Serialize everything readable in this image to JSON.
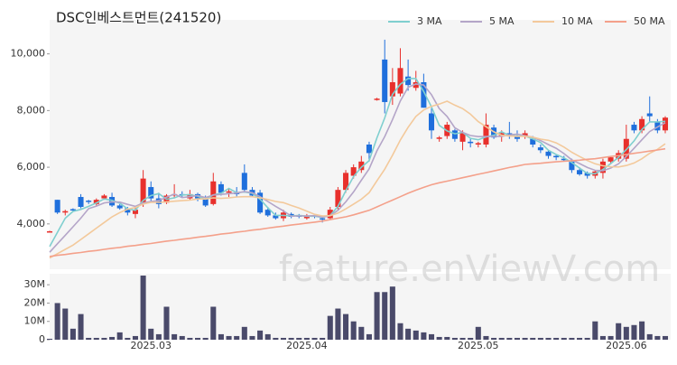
{
  "chart_data": {
    "type": "candlestick",
    "title": "DSC인베스트먼트(241520)",
    "watermark": "feature.enViewV.com",
    "categories": [
      null,
      null,
      null,
      null,
      null,
      null,
      null,
      null,
      null,
      null,
      null,
      null,
      null,
      "2025.03",
      null,
      null,
      null,
      null,
      null,
      null,
      null,
      null,
      null,
      null,
      null,
      null,
      null,
      null,
      null,
      null,
      null,
      null,
      null,
      "2025.04",
      null,
      null,
      null,
      null,
      null,
      null,
      null,
      null,
      null,
      null,
      null,
      null,
      null,
      null,
      null,
      null,
      null,
      null,
      null,
      null,
      null,
      "2025.05",
      null,
      null,
      null,
      null,
      null,
      null,
      null,
      null,
      null,
      null,
      null,
      null,
      null,
      null,
      null,
      null,
      null,
      null,
      "2025.06",
      null,
      null,
      null,
      null,
      null
    ],
    "open": [
      3720,
      4850,
      4400,
      4520,
      4950,
      4820,
      4700,
      4900,
      4950,
      4650,
      4550,
      4350,
      4700,
      5300,
      4900,
      4750,
      5000,
      5050,
      4900,
      5050,
      4900,
      4700,
      5400,
      5100,
      5100,
      5800,
      5200,
      5100,
      4500,
      4300,
      4200,
      4350,
      4300,
      4200,
      4300,
      4200,
      4200,
      4600,
      5200,
      5700,
      5900,
      6800,
      8400,
      9800,
      8500,
      8600,
      9200,
      8800,
      9000,
      7900,
      7000,
      7100,
      7300,
      6900,
      6900,
      6800,
      6800,
      7400,
      7100,
      7200,
      7100,
      7100,
      7000,
      6700,
      6550,
      6400,
      6300,
      6200,
      5900,
      5800,
      5700,
      5800,
      6200,
      6300,
      6300,
      7500,
      7300,
      7900,
      7600,
      7300
    ],
    "high": [
      3760,
      4850,
      4500,
      4550,
      5050,
      4850,
      4900,
      5050,
      5100,
      4700,
      4600,
      4600,
      5900,
      5500,
      5100,
      5050,
      5400,
      5150,
      5200,
      5100,
      5000,
      5800,
      5500,
      5250,
      5300,
      6100,
      5300,
      5200,
      4600,
      4400,
      4500,
      4400,
      4350,
      4350,
      4350,
      4300,
      4600,
      5300,
      5900,
      6100,
      6400,
      6900,
      8450,
      10500,
      9500,
      10200,
      9800,
      9400,
      9300,
      8100,
      7100,
      7600,
      7350,
      7300,
      7000,
      6900,
      7900,
      7500,
      7300,
      7600,
      7300,
      7300,
      7100,
      6800,
      6600,
      6450,
      6400,
      6300,
      6000,
      5850,
      5900,
      6300,
      6400,
      6600,
      7500,
      7600,
      7800,
      8500,
      7700,
      7800
    ],
    "low": [
      3700,
      4350,
      4300,
      4450,
      4550,
      4700,
      4650,
      4850,
      4600,
      4500,
      4300,
      4200,
      4600,
      4800,
      4550,
      4700,
      4900,
      4950,
      4850,
      4800,
      4600,
      4650,
      5000,
      4950,
      4950,
      5100,
      4950,
      4350,
      4250,
      4150,
      4100,
      4200,
      4200,
      4150,
      4200,
      4050,
      4150,
      4500,
      5100,
      5600,
      5800,
      6200,
      8350,
      7900,
      8200,
      8500,
      8700,
      8700,
      8100,
      7000,
      6900,
      7000,
      6900,
      6600,
      6700,
      6700,
      6700,
      7000,
      6900,
      7000,
      6900,
      7000,
      6700,
      6500,
      6300,
      6250,
      6200,
      5800,
      5700,
      5600,
      5600,
      5600,
      6100,
      6200,
      6200,
      7200,
      7200,
      7600,
      7200,
      7200
    ],
    "close": [
      3740,
      4400,
      4450,
      4480,
      4600,
      4780,
      4850,
      5000,
      4650,
      4550,
      4400,
      4500,
      5600,
      4900,
      4700,
      5000,
      5050,
      5000,
      5050,
      4900,
      4650,
      5500,
      5100,
      5150,
      5050,
      5200,
      5000,
      4400,
      4300,
      4200,
      4400,
      4250,
      4250,
      4300,
      4250,
      4150,
      4500,
      5200,
      5800,
      6000,
      6200,
      6500,
      8420,
      8300,
      9000,
      9500,
      8900,
      9000,
      8100,
      7300,
      7050,
      7500,
      7000,
      7200,
      6850,
      6850,
      7500,
      7050,
      7200,
      7100,
      7000,
      7200,
      6800,
      6600,
      6400,
      6350,
      6250,
      5900,
      5750,
      5700,
      5850,
      6200,
      6350,
      6500,
      7000,
      7300,
      7700,
      7800,
      7300,
      7750
    ],
    "volume": [
      500000,
      20000000,
      17000000,
      6000000,
      14000000,
      1000000,
      1000000,
      1000000,
      1500000,
      4000000,
      1000000,
      2000000,
      35000000,
      6000000,
      3000000,
      18000000,
      3000000,
      2000000,
      1000000,
      1000000,
      1000000,
      18000000,
      3000000,
      2000000,
      2000000,
      7000000,
      2000000,
      5000000,
      3000000,
      1000000,
      1000000,
      1000000,
      1000000,
      1000000,
      1000000,
      1000000,
      13000000,
      17000000,
      14000000,
      10000000,
      7000000,
      3000000,
      26000000,
      26000000,
      29000000,
      9000000,
      6000000,
      5000000,
      4000000,
      3000000,
      1500000,
      1500000,
      1000000,
      1000000,
      1000000,
      7000000,
      2000000,
      1000000,
      1000000,
      1000000,
      1000000,
      1000000,
      1000000,
      1000000,
      1000000,
      1000000,
      1000000,
      1000000,
      1000000,
      1000000,
      10000000,
      2000000,
      2000000,
      9000000,
      7000000,
      8000000,
      10000000,
      3000000,
      2000000,
      2000000
    ],
    "up_color": "#e8302c",
    "down_color": "#1f6fdc",
    "volume_color": "#4a4a6a",
    "series": [
      {
        "name": "3 MA",
        "color": "#7fcfcf",
        "values": [
          3200,
          3700,
          4200,
          4440,
          4510,
          4620,
          4740,
          4880,
          4830,
          4730,
          4530,
          4480,
          4830,
          5000,
          5070,
          4870,
          4920,
          5020,
          5030,
          4980,
          4870,
          5020,
          5080,
          5250,
          5100,
          5130,
          5080,
          4870,
          4570,
          4300,
          4300,
          4280,
          4300,
          4270,
          4270,
          4230,
          4300,
          4620,
          5170,
          5670,
          6000,
          6230,
          7040,
          7740,
          8570,
          8930,
          9130,
          9130,
          8670,
          8130,
          7480,
          7280,
          7180,
          7230,
          7020,
          6970,
          7070,
          7130,
          7250,
          7120,
          7100,
          7100,
          7000,
          6870,
          6600,
          6450,
          6330,
          6170,
          5970,
          5780,
          5770,
          5920,
          6130,
          6350,
          6620,
          6930,
          7330,
          7600,
          7600,
          7620
        ]
      },
      {
        "name": "5 MA",
        "color": "#b4a5c8",
        "values": [
          3000,
          3300,
          3600,
          3900,
          4200,
          4540,
          4630,
          4740,
          4780,
          4770,
          4690,
          4620,
          4740,
          4790,
          4820,
          4940,
          5050,
          4930,
          4960,
          5000,
          4930,
          5020,
          5040,
          5070,
          5090,
          5140,
          5100,
          4960,
          4790,
          4620,
          4460,
          4270,
          4280,
          4280,
          4290,
          4240,
          4290,
          4480,
          4780,
          5130,
          5540,
          5940,
          6580,
          7080,
          7680,
          8340,
          8820,
          8940,
          8900,
          8560,
          8070,
          7790,
          7390,
          7230,
          7120,
          7080,
          7080,
          7090,
          7090,
          7140,
          7170,
          7110,
          7060,
          6940,
          6800,
          6670,
          6480,
          6260,
          6130,
          5990,
          5890,
          5880,
          5970,
          6120,
          6380,
          6670,
          6970,
          7260,
          7420,
          7570
        ]
      },
      {
        "name": "10 MA",
        "color": "#f3c99b",
        "values": [
          2800,
          2950,
          3100,
          3250,
          3450,
          3650,
          3850,
          4050,
          4250,
          4400,
          4520,
          4580,
          4700,
          4760,
          4760,
          4780,
          4800,
          4820,
          4840,
          4880,
          4880,
          4920,
          4900,
          4920,
          4950,
          4960,
          4960,
          4920,
          4860,
          4790,
          4750,
          4650,
          4560,
          4450,
          4340,
          4280,
          4290,
          4380,
          4530,
          4700,
          4870,
          5100,
          5520,
          5930,
          6420,
          6960,
          7410,
          7790,
          8020,
          8150,
          8230,
          8330,
          8190,
          8070,
          7870,
          7610,
          7430,
          7250,
          7130,
          7100,
          7090,
          7090,
          7060,
          6990,
          6950,
          6860,
          6710,
          6530,
          6380,
          6240,
          6120,
          6050,
          6020,
          6010,
          6060,
          6150,
          6300,
          6490,
          6630,
          6830
        ]
      },
      {
        "name": "50 MA",
        "color": "#f4a08a",
        "values": [
          2850,
          2890,
          2920,
          2960,
          2990,
          3030,
          3060,
          3100,
          3140,
          3170,
          3210,
          3240,
          3280,
          3310,
          3350,
          3390,
          3420,
          3460,
          3490,
          3530,
          3560,
          3600,
          3640,
          3670,
          3710,
          3740,
          3780,
          3810,
          3850,
          3890,
          3920,
          3960,
          3990,
          4030,
          4060,
          4100,
          4150,
          4200,
          4250,
          4320,
          4400,
          4480,
          4600,
          4720,
          4840,
          4960,
          5080,
          5190,
          5290,
          5380,
          5450,
          5510,
          5570,
          5630,
          5690,
          5750,
          5810,
          5870,
          5930,
          5990,
          6040,
          6100,
          6120,
          6140,
          6170,
          6190,
          6210,
          6230,
          6250,
          6280,
          6300,
          6340,
          6380,
          6410,
          6450,
          6490,
          6530,
          6570,
          6610,
          6650
        ]
      }
    ],
    "ylim": [
      2400,
      11200
    ],
    "yticks": [
      {
        "value": 4000,
        "label": "4,000"
      },
      {
        "value": 6000,
        "label": "6,000"
      },
      {
        "value": 8000,
        "label": "8,000"
      },
      {
        "value": 10000,
        "label": "10,000"
      }
    ],
    "volume_ylim": [
      0,
      36000000
    ],
    "volume_yticks": [
      0,
      {
        "value": 10000000,
        "label": "10M"
      },
      {
        "value": 20000000,
        "label": "20M"
      },
      {
        "value": 30000000,
        "label": "30M"
      }
    ],
    "legend": "top-right",
    "grid": false
  }
}
